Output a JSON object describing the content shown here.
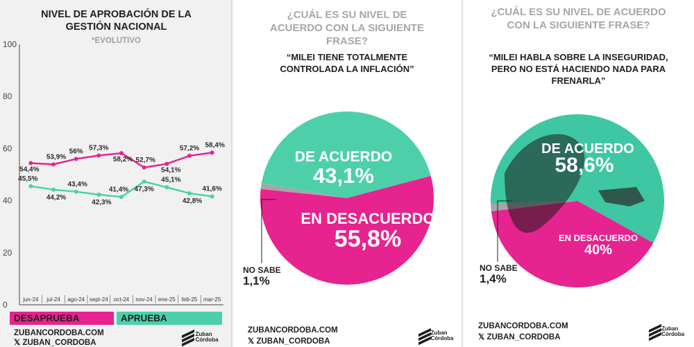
{
  "colors": {
    "desaprueba": "#e6238e",
    "aprueba": "#4dd0aa",
    "gray": "#a6a6a6",
    "text": "#1f1f1f"
  },
  "panel1": {
    "title": "NIVEL DE APROBACIÓN DE LA GESTIÓN NACIONAL",
    "subtitle": "*EVOLUTIVO",
    "legend_desaprueba": "DESAPRUEBA",
    "legend_aprueba": "APRUEBA",
    "footer_web": "ZUBANCORDOBA.COM",
    "footer_x": "𝕏 ZUBAN_CORDOBA"
  },
  "panel2": {
    "question": "¿CUÁL ES SU NIVEL DE ACUERDO CON LA SIGUIENTE FRASE?",
    "quote": "“MILEI TIENE TOTALMENTE CONTROLADA LA INFLACIÓN”",
    "acuerdo_label": "DE ACUERDO",
    "acuerdo_value": "43,1%",
    "desacuerdo_label": "EN DESACUERDO",
    "desacuerdo_value": "55,8%",
    "nosabe_label": "NO SABE",
    "nosabe_value": "1,1%",
    "footer_web": "ZUBANCORDOBA.COM",
    "footer_x": "𝕏 ZUBAN_CORDOBA",
    "logo_text": "Zuban Córdoba"
  },
  "panel3": {
    "question": "¿CUÁL ES SU NIVEL DE ACUERDO CON LA SIGUIENTE FRASE?",
    "quote": "“MILEI HABLA SOBRE LA INSEGURIDAD, PERO NO ESTÁ HACIENDO NADA PARA FRENARLA”",
    "acuerdo_label": "DE ACUERDO",
    "acuerdo_value": "58,6%",
    "desacuerdo_label": "EN DESACUERDO",
    "desacuerdo_value": "40%",
    "nosabe_label": "NO SABE",
    "nosabe_value": "1,4%",
    "footer_web": "ZUBANCORDOBA.COM",
    "footer_x": "𝕏 ZUBAN_CORDOBA",
    "logo_text": "Zuban Córdoba"
  },
  "chart_data": [
    {
      "type": "line",
      "title": "NIVEL DE APROBACIÓN DE LA GESTIÓN NACIONAL",
      "subtitle": "*EVOLUTIVO",
      "categories": [
        "jun-24",
        "jul-24",
        "ago-24",
        "sept-24",
        "oct-24",
        "nov-24",
        "ene-25",
        "feb-25",
        "mar-25"
      ],
      "series": [
        {
          "name": "DESAPRUEBA",
          "color": "#e6238e",
          "values": [
            54.4,
            53.9,
            56,
            57.3,
            58.2,
            52.7,
            54.1,
            57.2,
            58.4
          ],
          "labels": [
            "54,4%",
            "53,9%",
            "56%",
            "57,3%",
            "58,2%",
            "52,7%",
            "54,1%",
            "57,2%",
            "58,4%"
          ]
        },
        {
          "name": "APRUEBA",
          "color": "#4dd0aa",
          "values": [
            45.5,
            44.2,
            43.4,
            42.3,
            41.4,
            47.3,
            45.1,
            42.8,
            41.6
          ],
          "labels": [
            "45,5%",
            "44,2%",
            "43,4%",
            "42,3%",
            "41,4%",
            "47,3%",
            "45,1%",
            "42,8%",
            "41,6%"
          ]
        }
      ],
      "yticks": [
        "0",
        "20",
        "40",
        "60",
        "80",
        "100"
      ],
      "ylim": [
        0,
        100
      ],
      "grid": false
    },
    {
      "type": "pie",
      "slices": [
        {
          "name": "DE ACUERDO",
          "value": 43.1,
          "color": "#4dd0aa"
        },
        {
          "name": "EN DESACUERDO",
          "value": 55.8,
          "color": "#e6238e"
        },
        {
          "name": "NO SABE",
          "value": 1.1,
          "color": "#a6a6a6"
        }
      ]
    },
    {
      "type": "pie",
      "slices": [
        {
          "name": "DE ACUERDO",
          "value": 58.6,
          "color": "#3ec7a2"
        },
        {
          "name": "EN DESACUERDO",
          "value": 40,
          "color": "#e6238e"
        },
        {
          "name": "NO SABE",
          "value": 1.4,
          "color": "#a6a6a6"
        }
      ]
    }
  ]
}
